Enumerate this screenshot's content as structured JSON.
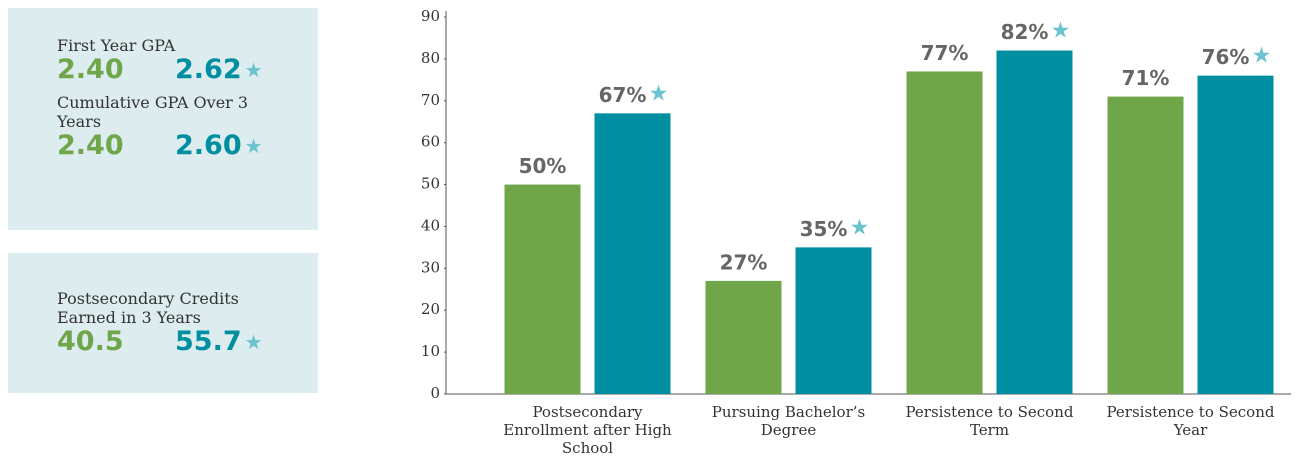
{
  "panels": [
    {
      "items": [
        {
          "label": "First Year GPA",
          "values": [
            "2.40",
            "2.62"
          ]
        },
        {
          "label": "Cumulative GPA Over 3 Years",
          "values": [
            "2.40",
            "2.60"
          ]
        }
      ]
    },
    {
      "items": [
        {
          "label": "Postsecondary Credits Earned in 3 Years",
          "values": [
            "40.5",
            "55.7"
          ]
        }
      ]
    }
  ],
  "chart_data": {
    "type": "bar",
    "categories": [
      "Postsecondary Enrollment after High School",
      "Pursuing Bachelor’s Degree",
      "Persistence to Second Term",
      "Persistence to Second Year"
    ],
    "series": [
      {
        "color": "#70a64a",
        "values": [
          50,
          27,
          77,
          71
        ],
        "value_labels": [
          "50%",
          "27%",
          "77%",
          "71%"
        ]
      },
      {
        "color": "#008fa0",
        "values": [
          67,
          35,
          82,
          76
        ],
        "value_labels": [
          "67%",
          "35%",
          "82%",
          "76%"
        ]
      }
    ],
    "ylim": [
      0,
      90
    ],
    "yticks": [
      0,
      10,
      20,
      30,
      40,
      50,
      60,
      70,
      80,
      90
    ]
  }
}
